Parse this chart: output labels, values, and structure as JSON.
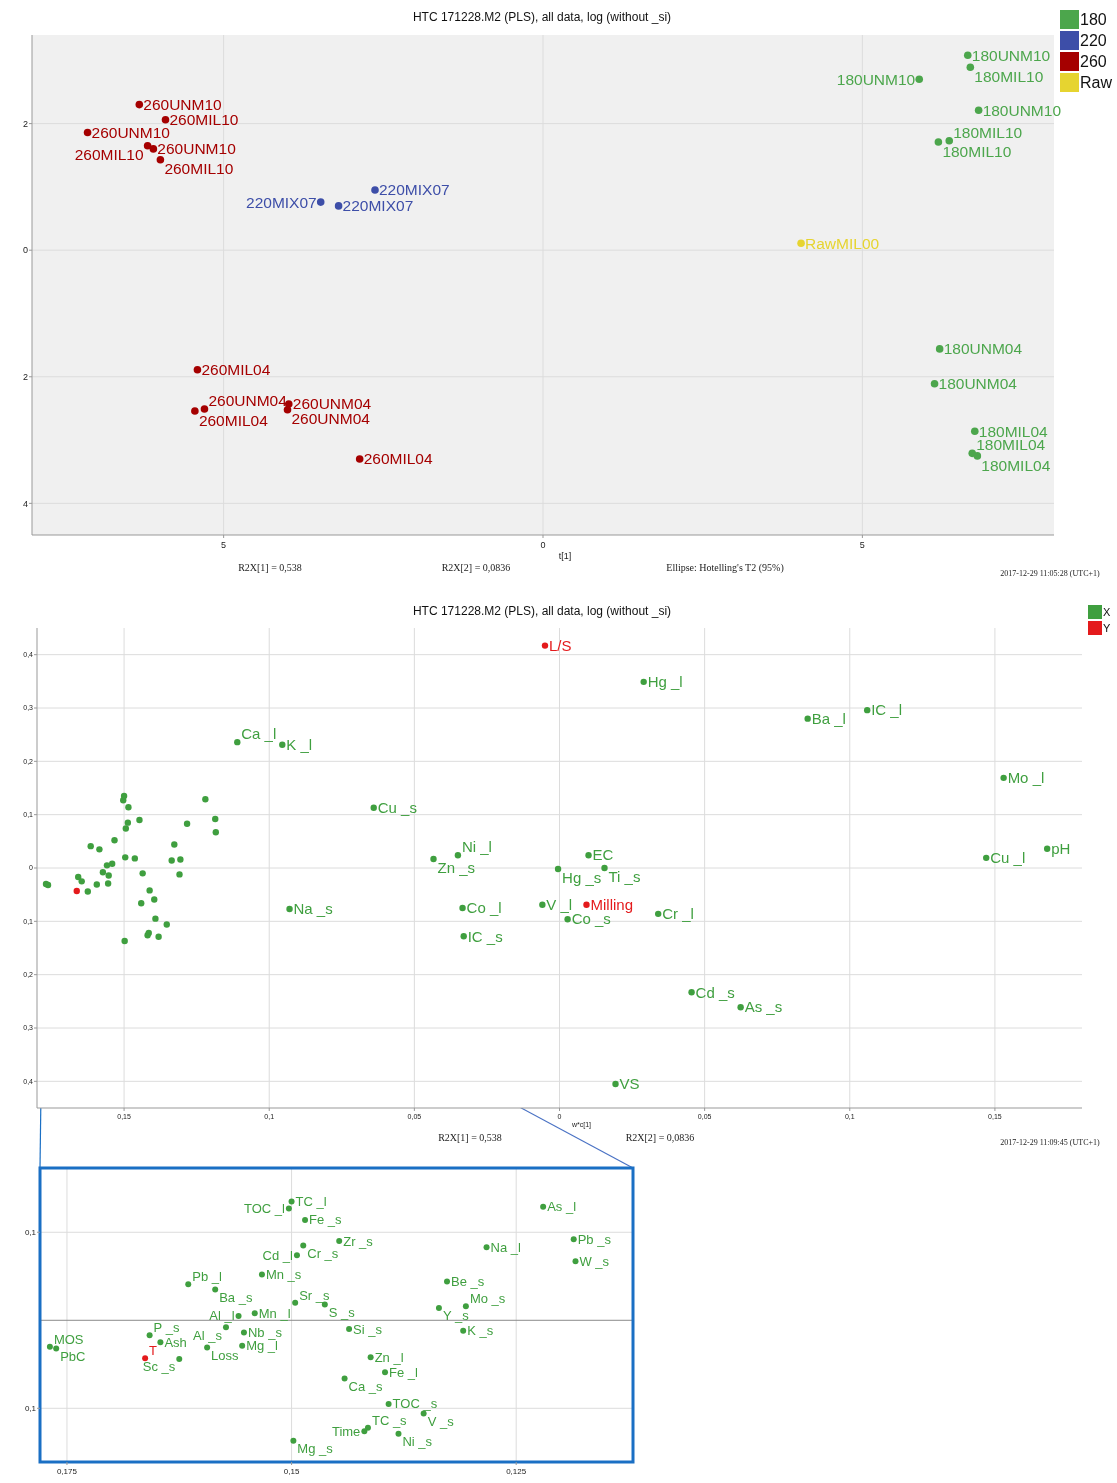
{
  "chart_data": [
    {
      "type": "scatter",
      "title": "HTC 171228.M2 (PLS), all data, log (without _si)",
      "xlabel": "t[1]",
      "xlim": [
        -8,
        8
      ],
      "ylim": [
        -4.5,
        3.4
      ],
      "xticks": [
        {
          "value": -5,
          "label": "5"
        },
        {
          "value": 0,
          "label": "0"
        },
        {
          "value": 5,
          "label": "5"
        }
      ],
      "yticks": [
        {
          "value": -4,
          "label": "4"
        },
        {
          "value": -2,
          "label": "2"
        },
        {
          "value": 0,
          "label": "0"
        },
        {
          "value": 2,
          "label": "2"
        }
      ],
      "grid": true,
      "legend": "top right",
      "marker": "circle",
      "series": [
        {
          "name": "180",
          "color": "#4ca64c",
          "x": [
            6.65,
            6.69,
            5.89,
            6.82,
            6.19,
            6.36,
            6.21,
            6.13,
            6.76,
            6.72,
            6.8
          ],
          "values": [
            3.08,
            2.89,
            2.7,
            2.21,
            1.71,
            1.73,
            -1.56,
            -2.11,
            -2.86,
            -3.21,
            -3.25
          ]
        },
        {
          "name": "220",
          "color": "#3d4ea8",
          "x": [
            -2.63,
            -3.48,
            -3.2
          ],
          "values": [
            0.95,
            0.76,
            0.7
          ]
        },
        {
          "name": "260",
          "color": "#a50000",
          "x": [
            -6.32,
            -5.91,
            -7.13,
            -6.19,
            -6.1,
            -5.99,
            -5.41,
            -5.45,
            -5.3,
            -3.98,
            -4.0,
            -2.87
          ],
          "values": [
            2.3,
            2.06,
            1.86,
            1.65,
            1.6,
            1.43,
            -1.89,
            -2.54,
            -2.51,
            -2.43,
            -2.52,
            -3.3
          ]
        },
        {
          "name": "Raw",
          "color": "#e6d430",
          "x": [
            4.04
          ],
          "values": [
            0.11
          ]
        }
      ],
      "annotations": [
        {
          "text": "180UNM10",
          "x": 6.65,
          "y": 3.08
        },
        {
          "text": "180MIL10",
          "x": 6.69,
          "y": 2.89
        },
        {
          "text": "180UNM10",
          "x": 5.89,
          "y": 2.7
        },
        {
          "text": "180UNM10",
          "x": 6.82,
          "y": 2.21
        },
        {
          "text": "180MIL10",
          "x": 6.19,
          "y": 1.71
        },
        {
          "text": "180MIL10",
          "x": 6.36,
          "y": 1.73
        },
        {
          "text": "180UNM04",
          "x": 6.21,
          "y": -1.56
        },
        {
          "text": "180UNM04",
          "x": 6.13,
          "y": -2.11
        },
        {
          "text": "180MIL04",
          "x": 6.76,
          "y": -2.86
        },
        {
          "text": "180MIL04",
          "x": 6.72,
          "y": -3.21
        },
        {
          "text": "180MIL04",
          "x": 6.8,
          "y": -3.25
        },
        {
          "text": "220MIX07",
          "x": -2.63,
          "y": 0.95
        },
        {
          "text": "220MIX07",
          "x": -3.48,
          "y": 0.76
        },
        {
          "text": "220MIX07",
          "x": -3.2,
          "y": 0.7
        },
        {
          "text": "260UNM10",
          "x": -6.32,
          "y": 2.3
        },
        {
          "text": "260MIL10",
          "x": -5.91,
          "y": 2.06
        },
        {
          "text": "260UNM10",
          "x": -7.13,
          "y": 1.86
        },
        {
          "text": "260MIL10",
          "x": -6.19,
          "y": 1.65
        },
        {
          "text": "260UNM10",
          "x": -6.1,
          "y": 1.6
        },
        {
          "text": "260MIL10",
          "x": -5.99,
          "y": 1.43
        },
        {
          "text": "260MIL04",
          "x": -5.41,
          "y": -1.89
        },
        {
          "text": "260MIL04",
          "x": -5.45,
          "y": -2.54
        },
        {
          "text": "260UNM04",
          "x": -5.3,
          "y": -2.51
        },
        {
          "text": "260UNM04",
          "x": -3.98,
          "y": -2.43
        },
        {
          "text": "260UNM04",
          "x": -4.0,
          "y": -2.52
        },
        {
          "text": "260MIL04",
          "x": -2.87,
          "y": -3.3
        },
        {
          "text": "RawMIL00",
          "x": 4.04,
          "y": 0.11
        },
        "R2X[1] = 0,538",
        "R2X[2] = 0,0836",
        "Ellipse: Hotelling's T2 (95%)",
        "2017-12-29 11:05:28 (UTC+1)"
      ]
    },
    {
      "type": "scatter",
      "title": "HTC 171228.M2 (PLS), all data, log (without _si)",
      "xlabel": "w*c[1]",
      "xlim": [
        -0.18,
        0.18
      ],
      "ylim": [
        -0.45,
        0.45
      ],
      "xticks": [
        {
          "value": -0.15,
          "label": "0,15"
        },
        {
          "value": -0.1,
          "label": "0,1"
        },
        {
          "value": -0.05,
          "label": "0,05"
        },
        0,
        {
          "value": 0.05,
          "label": "0,05"
        },
        {
          "value": 0.1,
          "label": "0,1"
        },
        {
          "value": 0.15,
          "label": "0,15"
        }
      ],
      "yticks": [
        {
          "value": -0.4,
          "label": "0,4"
        },
        {
          "value": -0.3,
          "label": "0,3"
        },
        {
          "value": -0.2,
          "label": "0,2"
        },
        {
          "value": -0.1,
          "label": "0,1"
        },
        0,
        {
          "value": 0.1,
          "label": "0,1"
        },
        {
          "value": 0.2,
          "label": "0,2"
        },
        {
          "value": 0.3,
          "label": "0,3"
        },
        {
          "value": 0.4,
          "label": "0,4"
        }
      ],
      "grid": true,
      "legend": "top right",
      "marker": "circle",
      "series": [
        {
          "name": "X",
          "color": "#3f9f3f",
          "x": [
            0.029,
            0.0855,
            0.106,
            -0.111,
            -0.0955,
            0.153,
            -0.064,
            -0.0434,
            -0.035,
            0.01,
            -0.0005,
            0.0155,
            0.147,
            0.168,
            -0.093,
            -0.0334,
            -0.0059,
            0.0028,
            0.034,
            -0.033,
            0.0455,
            0.0624,
            0.0193,
            -0.1503,
            -0.15,
            -0.1485,
            -0.1487,
            -0.1494,
            -0.1447,
            -0.122,
            -0.1283,
            -0.1186,
            -0.1184,
            -0.1533,
            -0.1615,
            -0.1585,
            -0.1327,
            -0.1496,
            -0.1463,
            -0.1336,
            -0.1306,
            -0.1541,
            -0.1559,
            -0.1573,
            -0.1436,
            -0.1309,
            -0.1553,
            -0.1658,
            -0.1769,
            -0.1762,
            -0.1646,
            -0.1594,
            -0.1555,
            -0.1625,
            -0.1412,
            -0.1396,
            -0.1441,
            -0.1392,
            -0.1353,
            -0.1415,
            -0.1419,
            -0.1381,
            -0.1498
          ],
          "values": [
            0.349,
            0.28,
            0.296,
            0.236,
            0.231,
            0.169,
            0.113,
            0.017,
            0.024,
            0.024,
            -0.002,
            0.0,
            0.019,
            0.036,
            -0.077,
            -0.075,
            -0.069,
            -0.096,
            -0.086,
            -0.128,
            -0.233,
            -0.261,
            -0.405,
            0.127,
            0.135,
            0.114,
            0.085,
            0.074,
            0.09,
            0.129,
            0.083,
            0.092,
            0.067,
            0.052,
            0.041,
            0.035,
            0.044,
            0.02,
            0.018,
            0.014,
            0.016,
            0.008,
            0.005,
            -0.008,
            -0.01,
            -0.012,
            -0.014,
            -0.017,
            -0.03,
            -0.032,
            -0.025,
            -0.031,
            -0.029,
            -0.044,
            -0.042,
            -0.059,
            -0.066,
            -0.095,
            -0.106,
            -0.122,
            -0.126,
            -0.129,
            -0.137
          ]
        },
        {
          "name": "Y",
          "color": "#e41a1c",
          "x": [
            -0.005,
            0.0093,
            -0.1663
          ],
          "values": [
            0.417,
            -0.069,
            -0.043
          ]
        }
      ],
      "annotations": [
        {
          "text": "L/S",
          "x": -0.005,
          "y": 0.417
        },
        {
          "text": "Milling",
          "x": 0.0093,
          "y": -0.069
        },
        {
          "text": "Hg _l",
          "x": 0.029,
          "y": 0.349
        },
        {
          "text": "Ba _l",
          "x": 0.0855,
          "y": 0.28
        },
        {
          "text": "IC _l",
          "x": 0.106,
          "y": 0.296
        },
        {
          "text": "Ca _l",
          "x": -0.111,
          "y": 0.236
        },
        {
          "text": "K _l",
          "x": -0.0955,
          "y": 0.231
        },
        {
          "text": "Mo _l",
          "x": 0.153,
          "y": 0.169
        },
        {
          "text": "Cu _s",
          "x": -0.064,
          "y": 0.113
        },
        {
          "text": "Zn _s",
          "x": -0.0434,
          "y": 0.017
        },
        {
          "text": "Ni _l",
          "x": -0.035,
          "y": 0.024
        },
        {
          "text": "EC",
          "x": 0.01,
          "y": 0.024
        },
        {
          "text": "Hg _s",
          "x": -0.0005,
          "y": -0.002
        },
        {
          "text": "Ti _s",
          "x": 0.0155,
          "y": 0.0
        },
        {
          "text": "Cu _l",
          "x": 0.147,
          "y": 0.019
        },
        {
          "text": "pH",
          "x": 0.168,
          "y": 0.036
        },
        {
          "text": "Na _s",
          "x": -0.093,
          "y": -0.077
        },
        {
          "text": "Co _l",
          "x": -0.0334,
          "y": -0.075
        },
        {
          "text": "V _l",
          "x": -0.0059,
          "y": -0.069
        },
        {
          "text": "Co _s",
          "x": 0.0028,
          "y": -0.096
        },
        {
          "text": "Cr _l",
          "x": 0.034,
          "y": -0.086
        },
        {
          "text": "IC _s",
          "x": -0.033,
          "y": -0.128
        },
        {
          "text": "Cd _s",
          "x": 0.0455,
          "y": -0.233
        },
        {
          "text": "As _s",
          "x": 0.0624,
          "y": -0.261
        },
        {
          "text": "VS",
          "x": 0.0193,
          "y": -0.405
        },
        "R2X[1] = 0,538",
        "R2X[2] = 0,0836",
        "2017-12-29 11:09:45 (UTC+1)"
      ]
    },
    {
      "type": "scatter",
      "xlim": [
        -0.178,
        -0.112
      ],
      "ylim": [
        -0.161,
        0.173
      ],
      "grid": true,
      "marker": "circle",
      "xticks": [
        {
          "value": -0.175,
          "label": "0,175"
        },
        {
          "value": -0.15,
          "label": "0,15"
        },
        {
          "value": -0.125,
          "label": "0,125"
        }
      ],
      "yticks": [
        {
          "value": -0.1,
          "label": "0,1"
        },
        {
          "value": 0.1,
          "label": "0,1"
        }
      ],
      "ref_lines": [
        {
          "axis": "y",
          "value": 0
        }
      ],
      "series": [
        {
          "color": "#3f9f3f",
          "x": [
            -0.1503,
            -0.15,
            -0.1485,
            -0.1487,
            -0.1494,
            -0.1447,
            -0.122,
            -0.1283,
            -0.1186,
            -0.1184,
            -0.1533,
            -0.1615,
            -0.1585,
            -0.1327,
            -0.1496,
            -0.1463,
            -0.1336,
            -0.1306,
            -0.1541,
            -0.1559,
            -0.1573,
            -0.1436,
            -0.1309,
            -0.1553,
            -0.1658,
            -0.1769,
            -0.1762,
            -0.1646,
            -0.1594,
            -0.1555,
            -0.1625,
            -0.1412,
            -0.1396,
            -0.1441,
            -0.1392,
            -0.1353,
            -0.1415,
            -0.1419,
            -0.1381,
            -0.1498
          ],
          "values": [
            0.127,
            0.135,
            0.114,
            0.085,
            0.074,
            0.09,
            0.129,
            0.083,
            0.092,
            0.067,
            0.052,
            0.041,
            0.035,
            0.044,
            0.02,
            0.018,
            0.014,
            0.016,
            0.008,
            0.005,
            -0.008,
            -0.01,
            -0.012,
            -0.014,
            -0.017,
            -0.03,
            -0.032,
            -0.025,
            -0.031,
            -0.029,
            -0.044,
            -0.042,
            -0.059,
            -0.066,
            -0.095,
            -0.106,
            -0.122,
            -0.126,
            -0.129,
            -0.137
          ]
        },
        {
          "color": "#e41a1c",
          "x": [
            -0.1663
          ],
          "values": [
            -0.043
          ]
        }
      ],
      "annotations": [
        {
          "text": "TOC _l",
          "x": -0.1503,
          "y": 0.127
        },
        {
          "text": "TC _l",
          "x": -0.15,
          "y": 0.135
        },
        {
          "text": "Fe _s",
          "x": -0.1485,
          "y": 0.114
        },
        {
          "text": "Cr _s",
          "x": -0.1487,
          "y": 0.085
        },
        {
          "text": "Cd _l",
          "x": -0.1494,
          "y": 0.074
        },
        {
          "text": "Zr _s",
          "x": -0.1447,
          "y": 0.09
        },
        {
          "text": "As _l",
          "x": -0.122,
          "y": 0.129
        },
        {
          "text": "Na _l",
          "x": -0.1283,
          "y": 0.083
        },
        {
          "text": "Pb _s",
          "x": -0.1186,
          "y": 0.092
        },
        {
          "text": "W _s",
          "x": -0.1184,
          "y": 0.067
        },
        {
          "text": "Mn _s",
          "x": -0.1533,
          "y": 0.052
        },
        {
          "text": "Pb _l",
          "x": -0.1615,
          "y": 0.041
        },
        {
          "text": "Ba _s",
          "x": -0.1585,
          "y": 0.035
        },
        {
          "text": "Be _s",
          "x": -0.1327,
          "y": 0.044
        },
        {
          "text": "Sr _s",
          "x": -0.1496,
          "y": 0.02
        },
        {
          "text": "S _s",
          "x": -0.1463,
          "y": 0.018
        },
        {
          "text": "Y _s",
          "x": -0.1336,
          "y": 0.014
        },
        {
          "text": "Mo _s",
          "x": -0.1306,
          "y": 0.016
        },
        {
          "text": "Mn _l",
          "x": -0.1541,
          "y": 0.008
        },
        {
          "text": "Al _l",
          "x": -0.1559,
          "y": 0.005
        },
        {
          "text": "Al _s",
          "x": -0.1573,
          "y": -0.008
        },
        {
          "text": "Si _s",
          "x": -0.1436,
          "y": -0.01
        },
        {
          "text": "K _s",
          "x": -0.1309,
          "y": -0.012
        },
        {
          "text": "Nb _s",
          "x": -0.1553,
          "y": -0.014
        },
        {
          "text": "P _s",
          "x": -0.1658,
          "y": -0.017
        },
        {
          "text": "MOS",
          "x": -0.1769,
          "y": -0.03
        },
        {
          "text": "PbC",
          "x": -0.1762,
          "y": -0.032
        },
        {
          "text": "Ash",
          "x": -0.1646,
          "y": -0.025
        },
        {
          "text": "Loss",
          "x": -0.1594,
          "y": -0.031
        },
        {
          "text": "Mg _l",
          "x": -0.1555,
          "y": -0.029
        },
        {
          "text": "Sc _s",
          "x": -0.1625,
          "y": -0.044
        },
        {
          "text": "T",
          "x": -0.1663,
          "y": -0.043
        },
        {
          "text": "Zn _l",
          "x": -0.1412,
          "y": -0.042
        },
        {
          "text": "Fe _l",
          "x": -0.1396,
          "y": -0.059
        },
        {
          "text": "Ca _s",
          "x": -0.1441,
          "y": -0.066
        },
        {
          "text": "TOC _s",
          "x": -0.1392,
          "y": -0.095
        },
        {
          "text": "V _s",
          "x": -0.1353,
          "y": -0.106
        },
        {
          "text": "TC _s",
          "x": -0.1415,
          "y": -0.122
        },
        {
          "text": "Time",
          "x": -0.1419,
          "y": -0.126
        },
        {
          "text": "Ni _s",
          "x": -0.1381,
          "y": -0.129
        },
        {
          "text": "Mg _s",
          "x": -0.1498,
          "y": -0.137
        }
      ]
    }
  ]
}
